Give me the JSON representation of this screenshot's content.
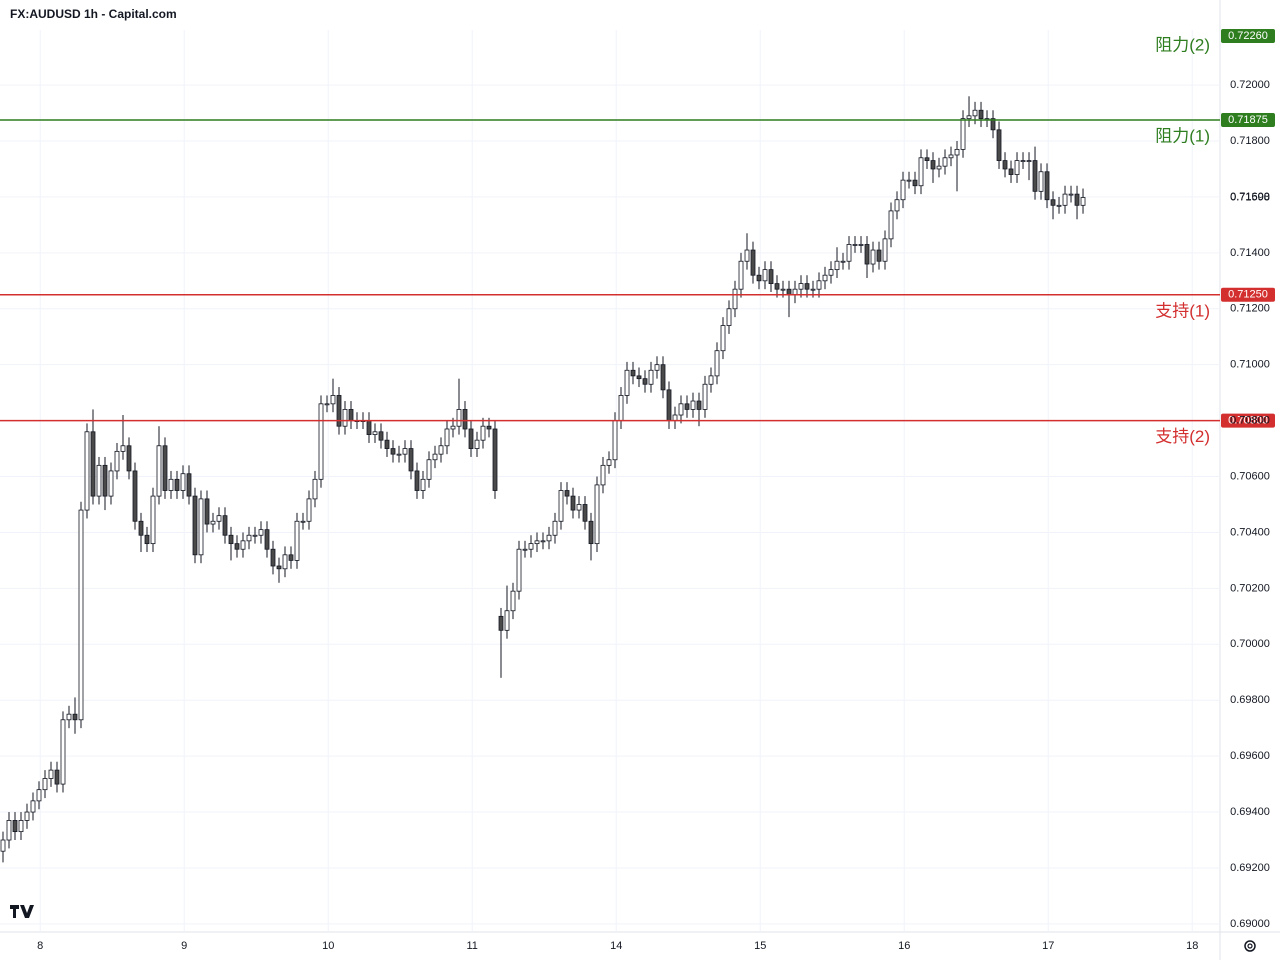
{
  "chart_data": {
    "type": "candlestick",
    "title": "FX:AUDUSD 1h - Capital.com",
    "up_color": "#ffffff",
    "down_color": "#4a4a4a",
    "edge_color": "#131722",
    "xlim": [
      -0.5,
      202.83
    ],
    "ylim": [
      0.68971,
      0.72197
    ],
    "xticks": [
      {
        "value": 6.2,
        "label": "8"
      },
      {
        "value": 30.2,
        "label": "9"
      },
      {
        "value": 54.2,
        "label": "10"
      },
      {
        "value": 78.2,
        "label": "11"
      },
      {
        "value": 102.2,
        "label": "14"
      },
      {
        "value": 126.2,
        "label": "15"
      },
      {
        "value": 150.2,
        "label": "16"
      },
      {
        "value": 174.2,
        "label": "17"
      },
      {
        "value": 198.2,
        "label": "18"
      }
    ],
    "yticks": [
      {
        "value": 0.69,
        "label": "0.69000"
      },
      {
        "value": 0.692,
        "label": "0.69200"
      },
      {
        "value": 0.694,
        "label": "0.69400"
      },
      {
        "value": 0.696,
        "label": "0.69600"
      },
      {
        "value": 0.698,
        "label": "0.69800"
      },
      {
        "value": 0.7,
        "label": "0.70000"
      },
      {
        "value": 0.702,
        "label": "0.70200"
      },
      {
        "value": 0.704,
        "label": "0.70400"
      },
      {
        "value": 0.706,
        "label": "0.70600"
      },
      {
        "value": 0.708,
        "label": "0.70800"
      },
      {
        "value": 0.71,
        "label": "0.71000"
      },
      {
        "value": 0.712,
        "label": "0.71200"
      },
      {
        "value": 0.714,
        "label": "0.71400"
      },
      {
        "value": 0.716,
        "label": "0.71600"
      },
      {
        "value": 0.718,
        "label": "0.71800"
      },
      {
        "value": 0.72,
        "label": "0.72000"
      }
    ],
    "grid": true,
    "last_price": 0.71598,
    "levels": [
      {
        "name": "阻力(2)",
        "value": 0.7226,
        "label": "0.72260",
        "color": "#2e7d1f"
      },
      {
        "name": "阻力(1)",
        "value": 0.71875,
        "label": "0.71875",
        "color": "#2e7d1f"
      },
      {
        "name": "支持(1)",
        "value": 0.7125,
        "label": "0.71250",
        "color": "#d32f2f"
      },
      {
        "name": "支持(2)",
        "value": 0.708,
        "label": "0.70800",
        "color": "#d32f2f"
      }
    ],
    "open": [
      0.6926,
      0.693,
      0.6937,
      0.6933,
      0.6937,
      0.694,
      0.6944,
      0.6948,
      0.6952,
      0.6955,
      0.695,
      0.6973,
      0.6975,
      0.6973,
      0.7048,
      0.7076,
      0.7053,
      0.7064,
      0.7053,
      0.7062,
      0.7069,
      0.7071,
      0.7062,
      0.7044,
      0.7039,
      0.7036,
      0.7053,
      0.7071,
      0.7055,
      0.7059,
      0.7055,
      0.7061,
      0.7053,
      0.7032,
      0.7052,
      0.7043,
      0.7044,
      0.7046,
      0.7039,
      0.7036,
      0.7034,
      0.7037,
      0.7039,
      0.7039,
      0.7041,
      0.7034,
      0.7028,
      0.7027,
      0.7032,
      0.703,
      0.7044,
      0.7044,
      0.7052,
      0.7059,
      0.7086,
      0.7086,
      0.7089,
      0.7078,
      0.7084,
      0.708,
      0.708,
      0.708,
      0.7075,
      0.7076,
      0.7073,
      0.707,
      0.7068,
      0.7068,
      0.707,
      0.7062,
      0.7055,
      0.7059,
      0.7066,
      0.7068,
      0.7071,
      0.7077,
      0.7078,
      0.7084,
      0.7077,
      0.707,
      0.7073,
      0.7078,
      0.7077,
      0.701,
      0.7005,
      0.7012,
      0.7019,
      0.7034,
      0.7034,
      0.7036,
      0.7037,
      0.7037,
      0.7039,
      0.7044,
      0.7055,
      0.7053,
      0.7048,
      0.705,
      0.7044,
      0.7036,
      0.7057,
      0.7064,
      0.7066,
      0.708,
      0.7089,
      0.7098,
      0.7096,
      0.7095,
      0.7093,
      0.7098,
      0.71,
      0.7091,
      0.708,
      0.7082,
      0.7086,
      0.7084,
      0.7087,
      0.7084,
      0.7093,
      0.7096,
      0.7105,
      0.7114,
      0.712,
      0.7127,
      0.7137,
      0.7141,
      0.7132,
      0.713,
      0.7134,
      0.7129,
      0.7127,
      0.7127,
      0.7125,
      0.7127,
      0.7129,
      0.7127,
      0.7127,
      0.713,
      0.7132,
      0.7134,
      0.7137,
      0.7137,
      0.7143,
      0.7143,
      0.7143,
      0.7136,
      0.7141,
      0.7137,
      0.7145,
      0.7155,
      0.7159,
      0.7166,
      0.7166,
      0.7164,
      0.7174,
      0.7173,
      0.717,
      0.7171,
      0.7174,
      0.7175,
      0.7177,
      0.7188,
      0.7189,
      0.7191,
      0.7188,
      0.7188,
      0.7184,
      0.7173,
      0.717,
      0.7168,
      0.7173,
      0.7173,
      0.7173,
      0.7162,
      0.7169,
      0.7159,
      0.7157,
      0.7157,
      0.7161,
      0.7161,
      0.7157
    ],
    "high": [
      0.6933,
      0.694,
      0.694,
      0.694,
      0.6943,
      0.6947,
      0.6951,
      0.6955,
      0.6958,
      0.6958,
      0.6976,
      0.6978,
      0.6981,
      0.7051,
      0.7079,
      0.7084,
      0.7067,
      0.7067,
      0.7065,
      0.7072,
      0.7082,
      0.7074,
      0.7065,
      0.7047,
      0.7042,
      0.7056,
      0.7078,
      0.7074,
      0.7062,
      0.7062,
      0.7064,
      0.7064,
      0.7056,
      0.7055,
      0.7055,
      0.7047,
      0.7049,
      0.7049,
      0.7042,
      0.7039,
      0.704,
      0.7042,
      0.7042,
      0.7044,
      0.7044,
      0.7037,
      0.7031,
      0.7035,
      0.7035,
      0.7047,
      0.7047,
      0.7055,
      0.7062,
      0.7089,
      0.7089,
      0.7095,
      0.7092,
      0.7087,
      0.7087,
      0.7083,
      0.7083,
      0.7083,
      0.7079,
      0.7079,
      0.7076,
      0.7073,
      0.7071,
      0.7073,
      0.7073,
      0.7065,
      0.7062,
      0.7069,
      0.7071,
      0.7074,
      0.708,
      0.7081,
      0.7095,
      0.7087,
      0.708,
      0.7076,
      0.7081,
      0.7081,
      0.708,
      0.7013,
      0.7021,
      0.7022,
      0.7037,
      0.7037,
      0.7039,
      0.704,
      0.704,
      0.7042,
      0.7047,
      0.7058,
      0.7058,
      0.7056,
      0.7053,
      0.7053,
      0.7047,
      0.706,
      0.7067,
      0.7069,
      0.7083,
      0.7092,
      0.7101,
      0.7101,
      0.7099,
      0.7098,
      0.7101,
      0.7103,
      0.7103,
      0.7094,
      0.7085,
      0.7089,
      0.7089,
      0.709,
      0.709,
      0.7096,
      0.7099,
      0.7108,
      0.7117,
      0.7123,
      0.713,
      0.714,
      0.7147,
      0.7144,
      0.7135,
      0.7137,
      0.7137,
      0.7132,
      0.713,
      0.713,
      0.713,
      0.7132,
      0.7132,
      0.713,
      0.7133,
      0.7135,
      0.7137,
      0.7142,
      0.714,
      0.7146,
      0.7146,
      0.7146,
      0.7146,
      0.7144,
      0.7144,
      0.7148,
      0.7158,
      0.7162,
      0.7169,
      0.7169,
      0.7169,
      0.7177,
      0.7177,
      0.7176,
      0.7174,
      0.7177,
      0.7178,
      0.718,
      0.7191,
      0.7196,
      0.7194,
      0.7194,
      0.7191,
      0.7191,
      0.7187,
      0.7176,
      0.7173,
      0.7176,
      0.7176,
      0.7176,
      0.7178,
      0.7172,
      0.7172,
      0.7162,
      0.716,
      0.7164,
      0.7164,
      0.7164,
      0.7163
    ],
    "low": [
      0.6922,
      0.6927,
      0.693,
      0.693,
      0.6934,
      0.6937,
      0.6941,
      0.6945,
      0.6949,
      0.6947,
      0.6947,
      0.697,
      0.6968,
      0.697,
      0.7045,
      0.705,
      0.705,
      0.7048,
      0.705,
      0.7059,
      0.7066,
      0.7059,
      0.7041,
      0.7033,
      0.7033,
      0.7033,
      0.705,
      0.7052,
      0.7052,
      0.7052,
      0.7052,
      0.705,
      0.7029,
      0.7029,
      0.704,
      0.704,
      0.7041,
      0.7036,
      0.703,
      0.7031,
      0.7031,
      0.7034,
      0.7036,
      0.7036,
      0.7031,
      0.7025,
      0.7022,
      0.7024,
      0.7027,
      0.7027,
      0.7041,
      0.7041,
      0.7049,
      0.7056,
      0.7083,
      0.7083,
      0.7075,
      0.7075,
      0.7077,
      0.7077,
      0.7077,
      0.7072,
      0.7072,
      0.707,
      0.7067,
      0.7065,
      0.7065,
      0.7065,
      0.7059,
      0.7052,
      0.7052,
      0.7056,
      0.7063,
      0.7065,
      0.7068,
      0.7074,
      0.7075,
      0.7074,
      0.7067,
      0.7067,
      0.707,
      0.7074,
      0.7052,
      0.6988,
      0.7002,
      0.7009,
      0.7016,
      0.7031,
      0.7031,
      0.7033,
      0.7034,
      0.7034,
      0.7036,
      0.7041,
      0.705,
      0.7045,
      0.7045,
      0.7041,
      0.703,
      0.7033,
      0.7054,
      0.7061,
      0.7063,
      0.7077,
      0.7086,
      0.7093,
      0.7092,
      0.709,
      0.709,
      0.7095,
      0.7088,
      0.7077,
      0.7077,
      0.7079,
      0.7081,
      0.7081,
      0.7078,
      0.7081,
      0.709,
      0.7093,
      0.7102,
      0.7111,
      0.7117,
      0.7124,
      0.7134,
      0.7129,
      0.7127,
      0.7127,
      0.7126,
      0.7124,
      0.7124,
      0.7117,
      0.7122,
      0.7124,
      0.7124,
      0.7124,
      0.7124,
      0.7127,
      0.7129,
      0.7131,
      0.7134,
      0.7134,
      0.714,
      0.714,
      0.7131,
      0.7133,
      0.7134,
      0.7134,
      0.7142,
      0.7152,
      0.7156,
      0.7163,
      0.7161,
      0.7161,
      0.717,
      0.7165,
      0.7167,
      0.7168,
      0.7171,
      0.7162,
      0.7174,
      0.7185,
      0.7186,
      0.7185,
      0.7185,
      0.7181,
      0.717,
      0.7167,
      0.7165,
      0.7165,
      0.717,
      0.7166,
      0.7159,
      0.7159,
      0.7156,
      0.7152,
      0.7154,
      0.7154,
      0.7158,
      0.7152,
      0.7154
    ],
    "close": [
      0.693,
      0.6937,
      0.6933,
      0.6937,
      0.694,
      0.6944,
      0.6948,
      0.6952,
      0.6955,
      0.695,
      0.6973,
      0.6975,
      0.6973,
      0.7048,
      0.7076,
      0.7053,
      0.7064,
      0.7053,
      0.7062,
      0.7069,
      0.7071,
      0.7062,
      0.7044,
      0.7039,
      0.7036,
      0.7053,
      0.7071,
      0.7055,
      0.7059,
      0.7055,
      0.7061,
      0.7053,
      0.7032,
      0.7052,
      0.7043,
      0.7044,
      0.7046,
      0.7039,
      0.7036,
      0.7034,
      0.7037,
      0.7039,
      0.7039,
      0.7041,
      0.7034,
      0.7028,
      0.7027,
      0.7032,
      0.703,
      0.7044,
      0.7044,
      0.7052,
      0.7059,
      0.7086,
      0.7086,
      0.7089,
      0.7078,
      0.7084,
      0.708,
      0.708,
      0.708,
      0.7075,
      0.7076,
      0.7073,
      0.707,
      0.7068,
      0.7068,
      0.707,
      0.7062,
      0.7055,
      0.7059,
      0.7066,
      0.7068,
      0.7071,
      0.7077,
      0.7078,
      0.7084,
      0.7077,
      0.707,
      0.7073,
      0.7078,
      0.7077,
      0.7055,
      0.7005,
      0.7012,
      0.7019,
      0.7034,
      0.7034,
      0.7036,
      0.7037,
      0.7037,
      0.7039,
      0.7044,
      0.7055,
      0.7053,
      0.7048,
      0.705,
      0.7044,
      0.7036,
      0.7057,
      0.7064,
      0.7066,
      0.708,
      0.7089,
      0.7098,
      0.7096,
      0.7095,
      0.7093,
      0.7098,
      0.71,
      0.7091,
      0.708,
      0.7082,
      0.7086,
      0.7084,
      0.7087,
      0.7084,
      0.7093,
      0.7096,
      0.7105,
      0.7114,
      0.712,
      0.7127,
      0.7137,
      0.7141,
      0.7132,
      0.713,
      0.7134,
      0.7129,
      0.7127,
      0.7127,
      0.7125,
      0.7127,
      0.7129,
      0.7127,
      0.7127,
      0.713,
      0.7132,
      0.7134,
      0.7137,
      0.7137,
      0.7143,
      0.7143,
      0.7143,
      0.7136,
      0.7141,
      0.7137,
      0.7145,
      0.7155,
      0.7159,
      0.7166,
      0.7166,
      0.7164,
      0.7174,
      0.7173,
      0.717,
      0.7171,
      0.7174,
      0.7175,
      0.7177,
      0.7188,
      0.7189,
      0.7191,
      0.7188,
      0.7188,
      0.7184,
      0.7173,
      0.717,
      0.7168,
      0.7173,
      0.7173,
      0.7173,
      0.7162,
      0.7169,
      0.7159,
      0.7157,
      0.7157,
      0.7161,
      0.7161,
      0.7157,
      0.71598
    ]
  }
}
